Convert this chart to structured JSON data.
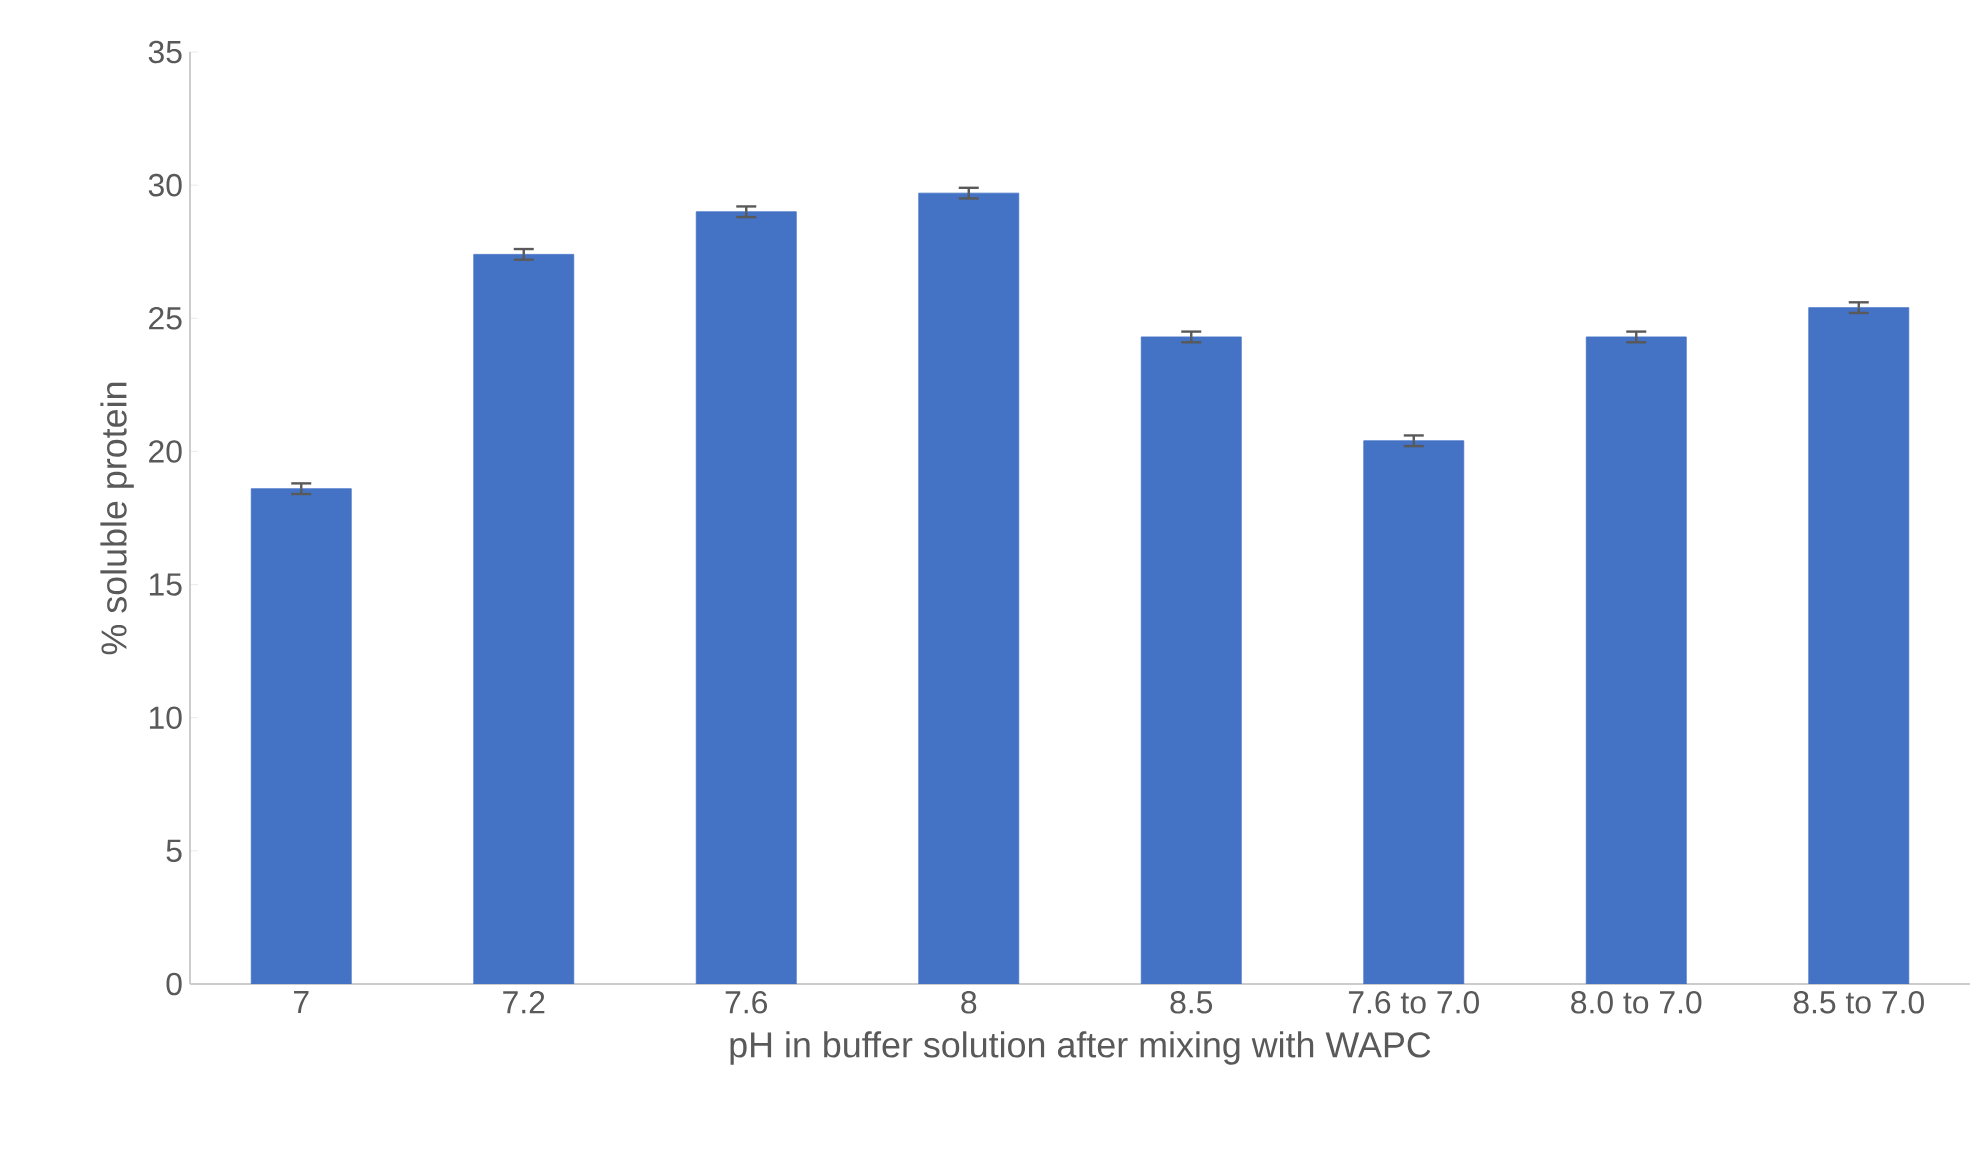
{
  "chart_data": {
    "type": "bar",
    "xlabel": "pH in buffer solution after mixing with WAPC",
    "ylabel": "% soluble protein",
    "categories": [
      "7",
      "7.2",
      "7.6",
      "8",
      "8.5",
      "7.6 to 7.0",
      "8.0 to 7.0",
      "8.5 to 7.0"
    ],
    "values": [
      18.6,
      27.4,
      29.0,
      29.7,
      24.3,
      20.4,
      24.3,
      25.4
    ],
    "errors": [
      0.2,
      0.2,
      0.2,
      0.2,
      0.2,
      0.2,
      0.2,
      0.2
    ],
    "color": "#4472c4",
    "ylim": [
      0,
      35
    ],
    "yticks": [
      0,
      5,
      10,
      15,
      20,
      25,
      30,
      35
    ],
    "grid": false
  }
}
